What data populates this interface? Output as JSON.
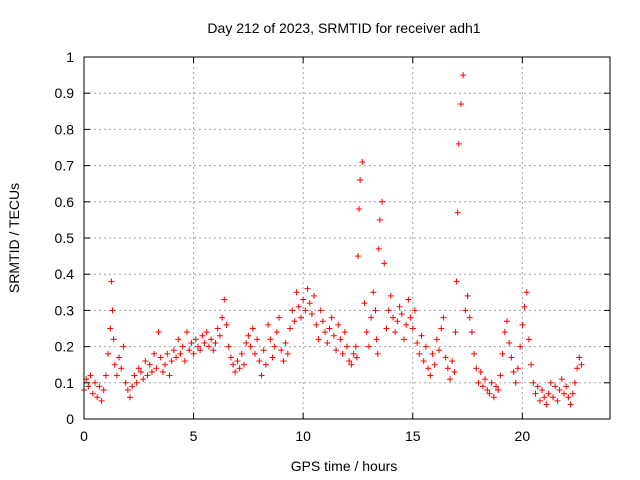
{
  "chart_data": {
    "type": "scatter",
    "title": "Day 212 of 2023, SRMTID for receiver adh1",
    "xlabel": "GPS time / hours",
    "ylabel": "SRMTID / TECUs",
    "xlim": [
      0,
      24
    ],
    "ylim": [
      0,
      1
    ],
    "xticks": [
      0,
      5,
      10,
      15,
      20
    ],
    "xtick_labels": [
      "0",
      "5",
      "10",
      "15",
      "20"
    ],
    "yticks": [
      0,
      0.1,
      0.2,
      0.3,
      0.4,
      0.5,
      0.6,
      0.7,
      0.8,
      0.9,
      1
    ],
    "ytick_labels": [
      "0",
      "0.1",
      "0.2",
      "0.3",
      "0.4",
      "0.5",
      "0.6",
      "0.7",
      "0.8",
      "0.9",
      "1"
    ],
    "grid": true,
    "marker": "plus",
    "color": "#ff0000",
    "series": [
      {
        "name": "SRMTID",
        "x": [
          0.0,
          0.1,
          0.2,
          0.3,
          0.4,
          0.5,
          0.6,
          0.7,
          0.8,
          0.9,
          1.0,
          1.1,
          1.2,
          1.25,
          1.3,
          1.35,
          1.4,
          1.5,
          1.6,
          1.7,
          1.8,
          1.9,
          2.0,
          2.1,
          2.2,
          2.3,
          2.4,
          2.5,
          2.6,
          2.7,
          2.8,
          2.9,
          3.0,
          3.1,
          3.2,
          3.3,
          3.4,
          3.5,
          3.6,
          3.7,
          3.8,
          3.9,
          4.0,
          4.1,
          4.2,
          4.3,
          4.4,
          4.5,
          4.6,
          4.7,
          4.8,
          4.9,
          5.0,
          5.1,
          5.2,
          5.3,
          5.4,
          5.5,
          5.6,
          5.7,
          5.8,
          5.9,
          6.0,
          6.1,
          6.2,
          6.3,
          6.4,
          6.5,
          6.6,
          6.7,
          6.8,
          6.9,
          7.0,
          7.1,
          7.2,
          7.3,
          7.4,
          7.5,
          7.6,
          7.7,
          7.8,
          7.9,
          8.0,
          8.1,
          8.2,
          8.3,
          8.4,
          8.5,
          8.6,
          8.7,
          8.8,
          8.9,
          9.0,
          9.1,
          9.2,
          9.3,
          9.4,
          9.5,
          9.6,
          9.7,
          9.8,
          9.9,
          10.0,
          10.1,
          10.2,
          10.3,
          10.4,
          10.5,
          10.6,
          10.7,
          10.8,
          10.9,
          11.0,
          11.1,
          11.2,
          11.3,
          11.4,
          11.5,
          11.6,
          11.7,
          11.8,
          11.9,
          12.0,
          12.1,
          12.2,
          12.3,
          12.4,
          12.45,
          12.5,
          12.55,
          12.6,
          12.7,
          12.8,
          12.9,
          13.0,
          13.1,
          13.2,
          13.3,
          13.35,
          13.4,
          13.45,
          13.5,
          13.6,
          13.7,
          13.8,
          13.9,
          14.0,
          14.1,
          14.2,
          14.3,
          14.4,
          14.5,
          14.6,
          14.7,
          14.8,
          14.9,
          15.0,
          15.1,
          15.2,
          15.3,
          15.4,
          15.5,
          15.6,
          15.7,
          15.8,
          15.9,
          16.0,
          16.1,
          16.2,
          16.3,
          16.4,
          16.5,
          16.6,
          16.7,
          16.8,
          16.9,
          16.95,
          17.0,
          17.05,
          17.1,
          17.2,
          17.3,
          17.4,
          17.5,
          17.6,
          17.7,
          17.8,
          17.9,
          18.0,
          18.1,
          18.2,
          18.3,
          18.4,
          18.5,
          18.6,
          18.7,
          18.8,
          18.9,
          19.0,
          19.1,
          19.2,
          19.3,
          19.4,
          19.5,
          19.6,
          19.7,
          19.8,
          19.9,
          20.0,
          20.1,
          20.2,
          20.3,
          20.4,
          20.5,
          20.6,
          20.7,
          20.8,
          20.9,
          21.0,
          21.1,
          21.2,
          21.3,
          21.4,
          21.5,
          21.6,
          21.7,
          21.8,
          21.9,
          22.0,
          22.1,
          22.2,
          22.3,
          22.4,
          22.5,
          22.6,
          22.7
        ],
        "y": [
          0.08,
          0.11,
          0.09,
          0.12,
          0.07,
          0.1,
          0.06,
          0.09,
          0.05,
          0.08,
          0.12,
          0.18,
          0.25,
          0.38,
          0.3,
          0.22,
          0.15,
          0.12,
          0.17,
          0.14,
          0.2,
          0.1,
          0.08,
          0.06,
          0.09,
          0.12,
          0.1,
          0.14,
          0.13,
          0.11,
          0.16,
          0.12,
          0.15,
          0.13,
          0.18,
          0.14,
          0.24,
          0.17,
          0.13,
          0.15,
          0.18,
          0.12,
          0.16,
          0.19,
          0.17,
          0.22,
          0.18,
          0.2,
          0.16,
          0.24,
          0.19,
          0.21,
          0.18,
          0.22,
          0.2,
          0.19,
          0.23,
          0.21,
          0.24,
          0.2,
          0.22,
          0.19,
          0.21,
          0.25,
          0.23,
          0.28,
          0.33,
          0.26,
          0.2,
          0.17,
          0.15,
          0.13,
          0.16,
          0.14,
          0.18,
          0.15,
          0.21,
          0.23,
          0.2,
          0.25,
          0.18,
          0.22,
          0.16,
          0.12,
          0.19,
          0.15,
          0.26,
          0.22,
          0.17,
          0.2,
          0.24,
          0.28,
          0.19,
          0.16,
          0.21,
          0.18,
          0.25,
          0.3,
          0.27,
          0.35,
          0.31,
          0.28,
          0.33,
          0.3,
          0.36,
          0.32,
          0.29,
          0.34,
          0.26,
          0.22,
          0.3,
          0.27,
          0.24,
          0.21,
          0.25,
          0.28,
          0.23,
          0.19,
          0.26,
          0.22,
          0.18,
          0.24,
          0.2,
          0.16,
          0.15,
          0.18,
          0.2,
          0.17,
          0.45,
          0.58,
          0.66,
          0.71,
          0.32,
          0.24,
          0.2,
          0.28,
          0.35,
          0.3,
          0.22,
          0.18,
          0.47,
          0.55,
          0.6,
          0.43,
          0.25,
          0.3,
          0.34,
          0.28,
          0.24,
          0.27,
          0.31,
          0.29,
          0.22,
          0.26,
          0.33,
          0.28,
          0.25,
          0.3,
          0.21,
          0.18,
          0.23,
          0.16,
          0.2,
          0.14,
          0.12,
          0.18,
          0.15,
          0.22,
          0.19,
          0.25,
          0.28,
          0.17,
          0.14,
          0.11,
          0.16,
          0.13,
          0.24,
          0.38,
          0.57,
          0.76,
          0.87,
          0.95,
          0.3,
          0.34,
          0.28,
          0.24,
          0.18,
          0.14,
          0.1,
          0.13,
          0.09,
          0.11,
          0.08,
          0.07,
          0.1,
          0.06,
          0.09,
          0.08,
          0.12,
          0.18,
          0.24,
          0.27,
          0.21,
          0.17,
          0.13,
          0.1,
          0.14,
          0.2,
          0.26,
          0.31,
          0.35,
          0.22,
          0.15,
          0.1,
          0.07,
          0.09,
          0.05,
          0.08,
          0.06,
          0.04,
          0.07,
          0.1,
          0.06,
          0.09,
          0.05,
          0.08,
          0.11,
          0.07,
          0.09,
          0.06,
          0.04,
          0.07,
          0.1,
          0.14,
          0.17,
          0.15
        ]
      }
    ]
  }
}
